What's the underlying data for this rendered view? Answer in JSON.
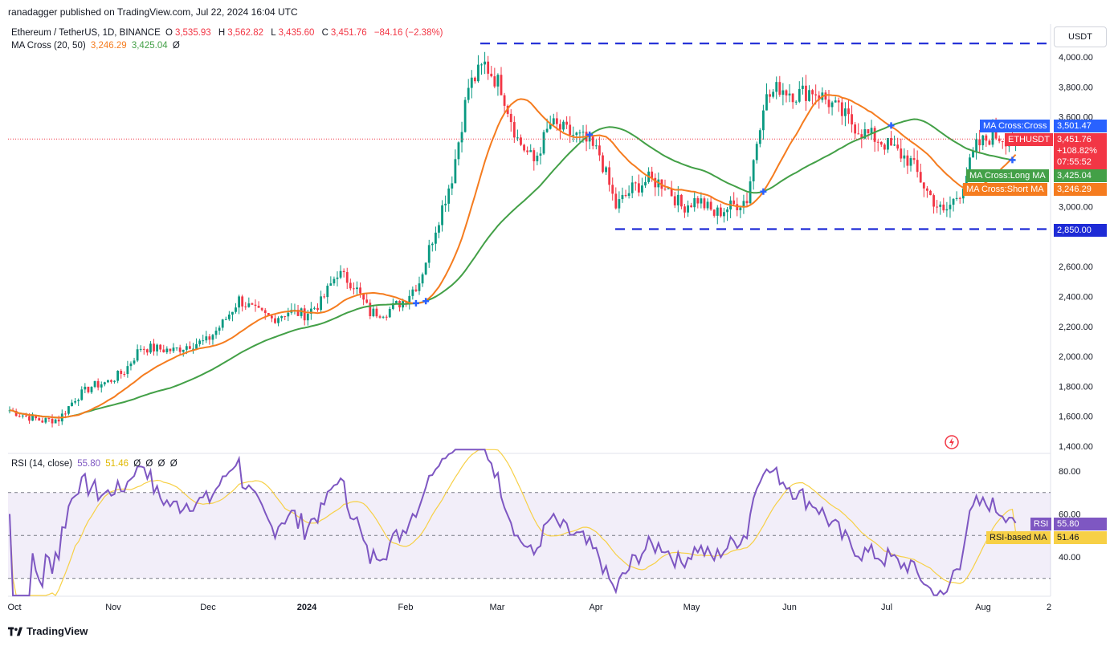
{
  "header": {
    "publisher": "ranadagger published on TradingView.com, Jul 22, 2024 16:04 UTC"
  },
  "legend": {
    "symbol": "Ethereum / TetherUS, 1D, BINANCE",
    "o_label": "O",
    "o_value": "3,535.93",
    "h_label": "H",
    "h_value": "3,562.82",
    "l_label": "L",
    "l_value": "3,435.60",
    "c_label": "C",
    "c_value": "3,451.76",
    "change": "−84.16 (−2.38%)",
    "ma_label": "MA Cross (20, 50)",
    "ma_short_value": "3,246.29",
    "ma_long_value": "3,425.04",
    "ma_zero": "Ø"
  },
  "rsi_legend": {
    "label": "RSI (14, close)",
    "rsi_value": "55.80",
    "ma_value": "51.46",
    "empties": [
      "Ø",
      "Ø",
      "Ø",
      "Ø"
    ]
  },
  "currency": "USDT",
  "price_axis": [
    "4,000.00",
    "3,800.00",
    "3,600.00",
    "3,000.00",
    "2,600.00",
    "2,400.00",
    "2,200.00",
    "2,000.00",
    "1,800.00",
    "1,600.00",
    "1,400.00"
  ],
  "rsi_axis": [
    "80.00",
    "60.00",
    "40.00"
  ],
  "time_axis": [
    "Oct",
    "Nov",
    "Dec",
    "2024",
    "Feb",
    "Mar",
    "Apr",
    "May",
    "Jun",
    "Jul",
    "Aug",
    "2"
  ],
  "tags": {
    "ma_cross": {
      "label": "MA Cross:Cross",
      "value": "3,501.47"
    },
    "ethusdt": {
      "label": "ETHUSDT",
      "value": "3,451.76",
      "change": "+108.82%",
      "countdown": "07:55:52"
    },
    "long_ma": {
      "label": "MA Cross:Long MA",
      "value": "3,425.04"
    },
    "short_ma": {
      "label": "MA Cross:Short MA",
      "value": "3,246.29"
    },
    "support": {
      "value": "2,850.00"
    },
    "rsi": {
      "label": "RSI",
      "value": "55.80"
    },
    "rsi_ma": {
      "label": "RSI-based MA",
      "value": "51.46"
    }
  },
  "colors": {
    "up": "#089981",
    "down": "#f23645",
    "short_ma": "#f57c1f",
    "long_ma": "#43a047",
    "rsi": "#7e57c2",
    "rsi_ma": "#f7d046",
    "level": "#1e2bd6",
    "cross": "#2962ff"
  },
  "footer": {
    "brand": "TradingView"
  },
  "chart_data": {
    "type": "candlestick",
    "title": "Ethereum / TetherUS, 1D, BINANCE",
    "ylabel": "USDT",
    "ylim": [
      1400,
      4100
    ],
    "horizontal_levels": [
      4090,
      2850
    ],
    "close": [
      [
        0,
        1640
      ],
      [
        5,
        1600
      ],
      [
        10,
        1570
      ],
      [
        15,
        1580
      ],
      [
        20,
        1720
      ],
      [
        25,
        1800
      ],
      [
        30,
        1830
      ],
      [
        35,
        1900
      ],
      [
        40,
        2060
      ],
      [
        45,
        2050
      ],
      [
        50,
        2040
      ],
      [
        55,
        2080
      ],
      [
        60,
        2100
      ],
      [
        65,
        2220
      ],
      [
        70,
        2380
      ],
      [
        75,
        2300
      ],
      [
        80,
        2250
      ],
      [
        85,
        2300
      ],
      [
        90,
        2280
      ],
      [
        95,
        2360
      ],
      [
        100,
        2560
      ],
      [
        105,
        2480
      ],
      [
        110,
        2290
      ],
      [
        115,
        2300
      ],
      [
        120,
        2370
      ],
      [
        125,
        2500
      ],
      [
        130,
        2860
      ],
      [
        135,
        3200
      ],
      [
        140,
        3800
      ],
      [
        145,
        3950
      ],
      [
        150,
        3800
      ],
      [
        155,
        3450
      ],
      [
        160,
        3300
      ],
      [
        165,
        3550
      ],
      [
        170,
        3500
      ],
      [
        175,
        3450
      ],
      [
        180,
        3350
      ],
      [
        185,
        3000
      ],
      [
        190,
        3120
      ],
      [
        195,
        3180
      ],
      [
        200,
        3150
      ],
      [
        205,
        3000
      ],
      [
        210,
        3050
      ],
      [
        215,
        2950
      ],
      [
        220,
        3000
      ],
      [
        225,
        3050
      ],
      [
        230,
        3700
      ],
      [
        235,
        3800
      ],
      [
        240,
        3750
      ],
      [
        245,
        3780
      ],
      [
        250,
        3700
      ],
      [
        255,
        3600
      ],
      [
        260,
        3500
      ],
      [
        265,
        3450
      ],
      [
        270,
        3380
      ],
      [
        275,
        3300
      ],
      [
        280,
        3100
      ],
      [
        285,
        2950
      ],
      [
        290,
        3100
      ],
      [
        295,
        3400
      ],
      [
        300,
        3480
      ],
      [
        305,
        3451.76
      ]
    ],
    "series": [
      {
        "name": "MA Cross:Short MA",
        "last": 3246.29
      },
      {
        "name": "MA Cross:Long MA",
        "last": 3425.04
      },
      {
        "name": "RSI",
        "last": 55.8
      },
      {
        "name": "RSI-based MA",
        "last": 51.46
      }
    ]
  }
}
